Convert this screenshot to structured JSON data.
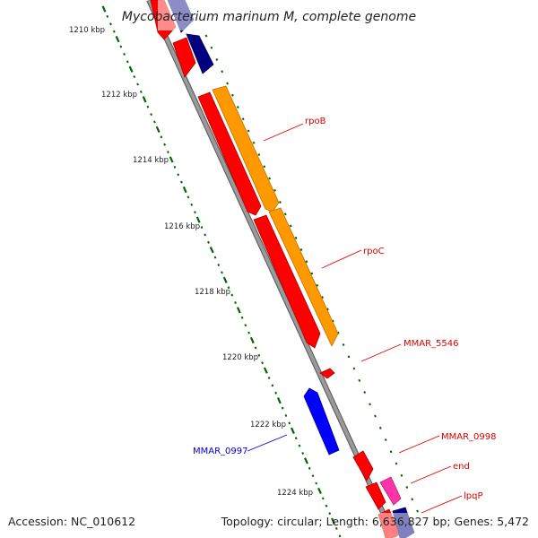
{
  "header": {
    "title": "Mycobacterium marinum M, complete genome"
  },
  "footer": {
    "accession": "Accession: NC_010612",
    "summary": "Topology: circular; Length: 6,636,827 bp; Genes: 5,472"
  },
  "ruler": {
    "ticks": [
      "1210 kbp",
      "1212 kbp",
      "1214 kbp",
      "1216 kbp",
      "1218 kbp",
      "1220 kbp",
      "1222 kbp",
      "1224 kbp"
    ]
  },
  "gene_labels": [
    {
      "id": "rpoB",
      "label": "rpoB",
      "color": "#e00000"
    },
    {
      "id": "rpoC",
      "label": "rpoC",
      "color": "#e00000"
    },
    {
      "id": "MMAR_5546",
      "label": "MMAR_5546",
      "color": "#e00000"
    },
    {
      "id": "MMAR_0998",
      "label": "MMAR_0998",
      "color": "#e00000"
    },
    {
      "id": "end",
      "label": "end",
      "color": "#e00000"
    },
    {
      "id": "lpqP",
      "label": "lpqP",
      "color": "#e00000"
    },
    {
      "id": "MMAR_0997",
      "label": "MMAR_0997",
      "color": "#0000cc"
    }
  ],
  "colors": {
    "backbone": "#8c8c8c",
    "forward_gene": "#ff0000",
    "forward_gene_dark": "#b00000",
    "orange_track": "#ff9900",
    "navy_track": "#000080",
    "reverse_gene": "#0000ff",
    "pink_track": "#ff33aa",
    "tick_green": "#006600"
  }
}
